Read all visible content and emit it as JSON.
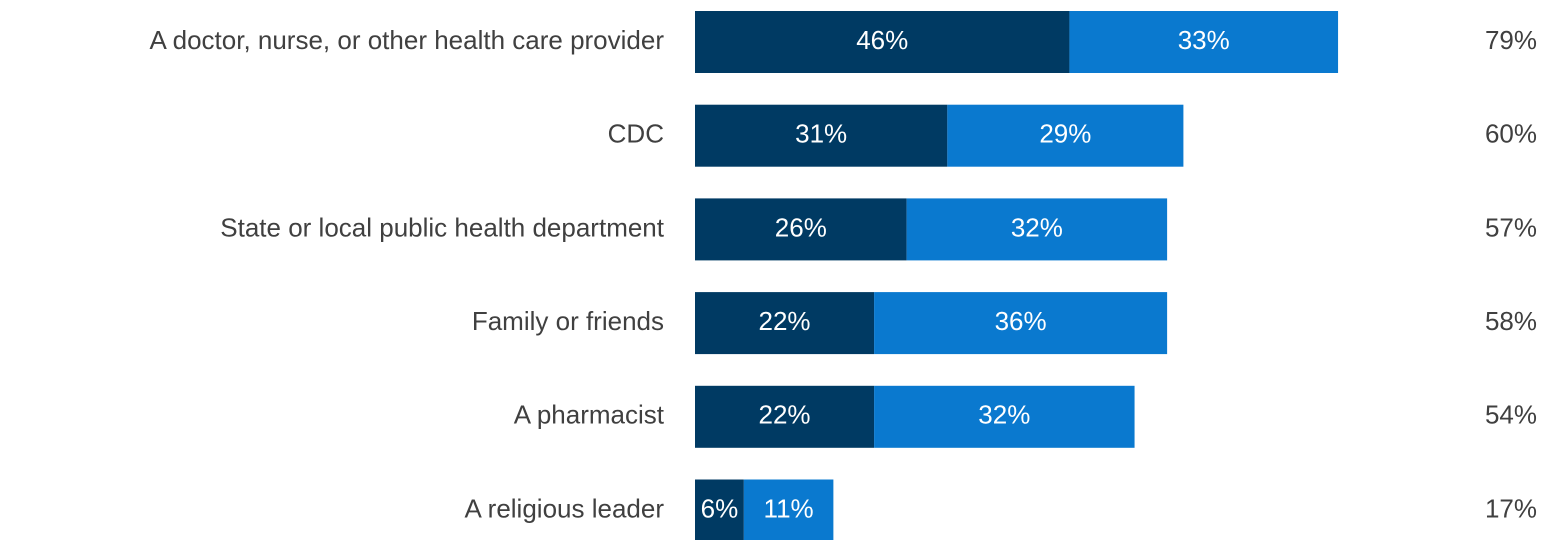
{
  "chart_data": {
    "type": "bar",
    "orientation": "horizontal",
    "stacked": true,
    "categories": [
      "A doctor, nurse, or other health care provider",
      "CDC",
      "State or local public health department",
      "Family or friends",
      "A pharmacist",
      "A religious leader"
    ],
    "series": [
      {
        "values": [
          46,
          31,
          26,
          22,
          22,
          6
        ],
        "labels": [
          "46%",
          "31%",
          "26%",
          "22%",
          "22%",
          "6%"
        ],
        "color": "#003a63"
      },
      {
        "values": [
          33,
          29,
          32,
          36,
          32,
          11
        ],
        "labels": [
          "33%",
          "29%",
          "32%",
          "36%",
          "32%",
          "11%"
        ],
        "color": "#0a79cf"
      }
    ],
    "totals": [
      79,
      60,
      57,
      58,
      54,
      17
    ],
    "total_labels": [
      "79%",
      "60%",
      "57%",
      "58%",
      "54%",
      "17%"
    ],
    "title": "",
    "xlabel": "",
    "ylabel": "",
    "xlim": [
      0,
      100
    ],
    "grid": false,
    "legend": "none"
  }
}
